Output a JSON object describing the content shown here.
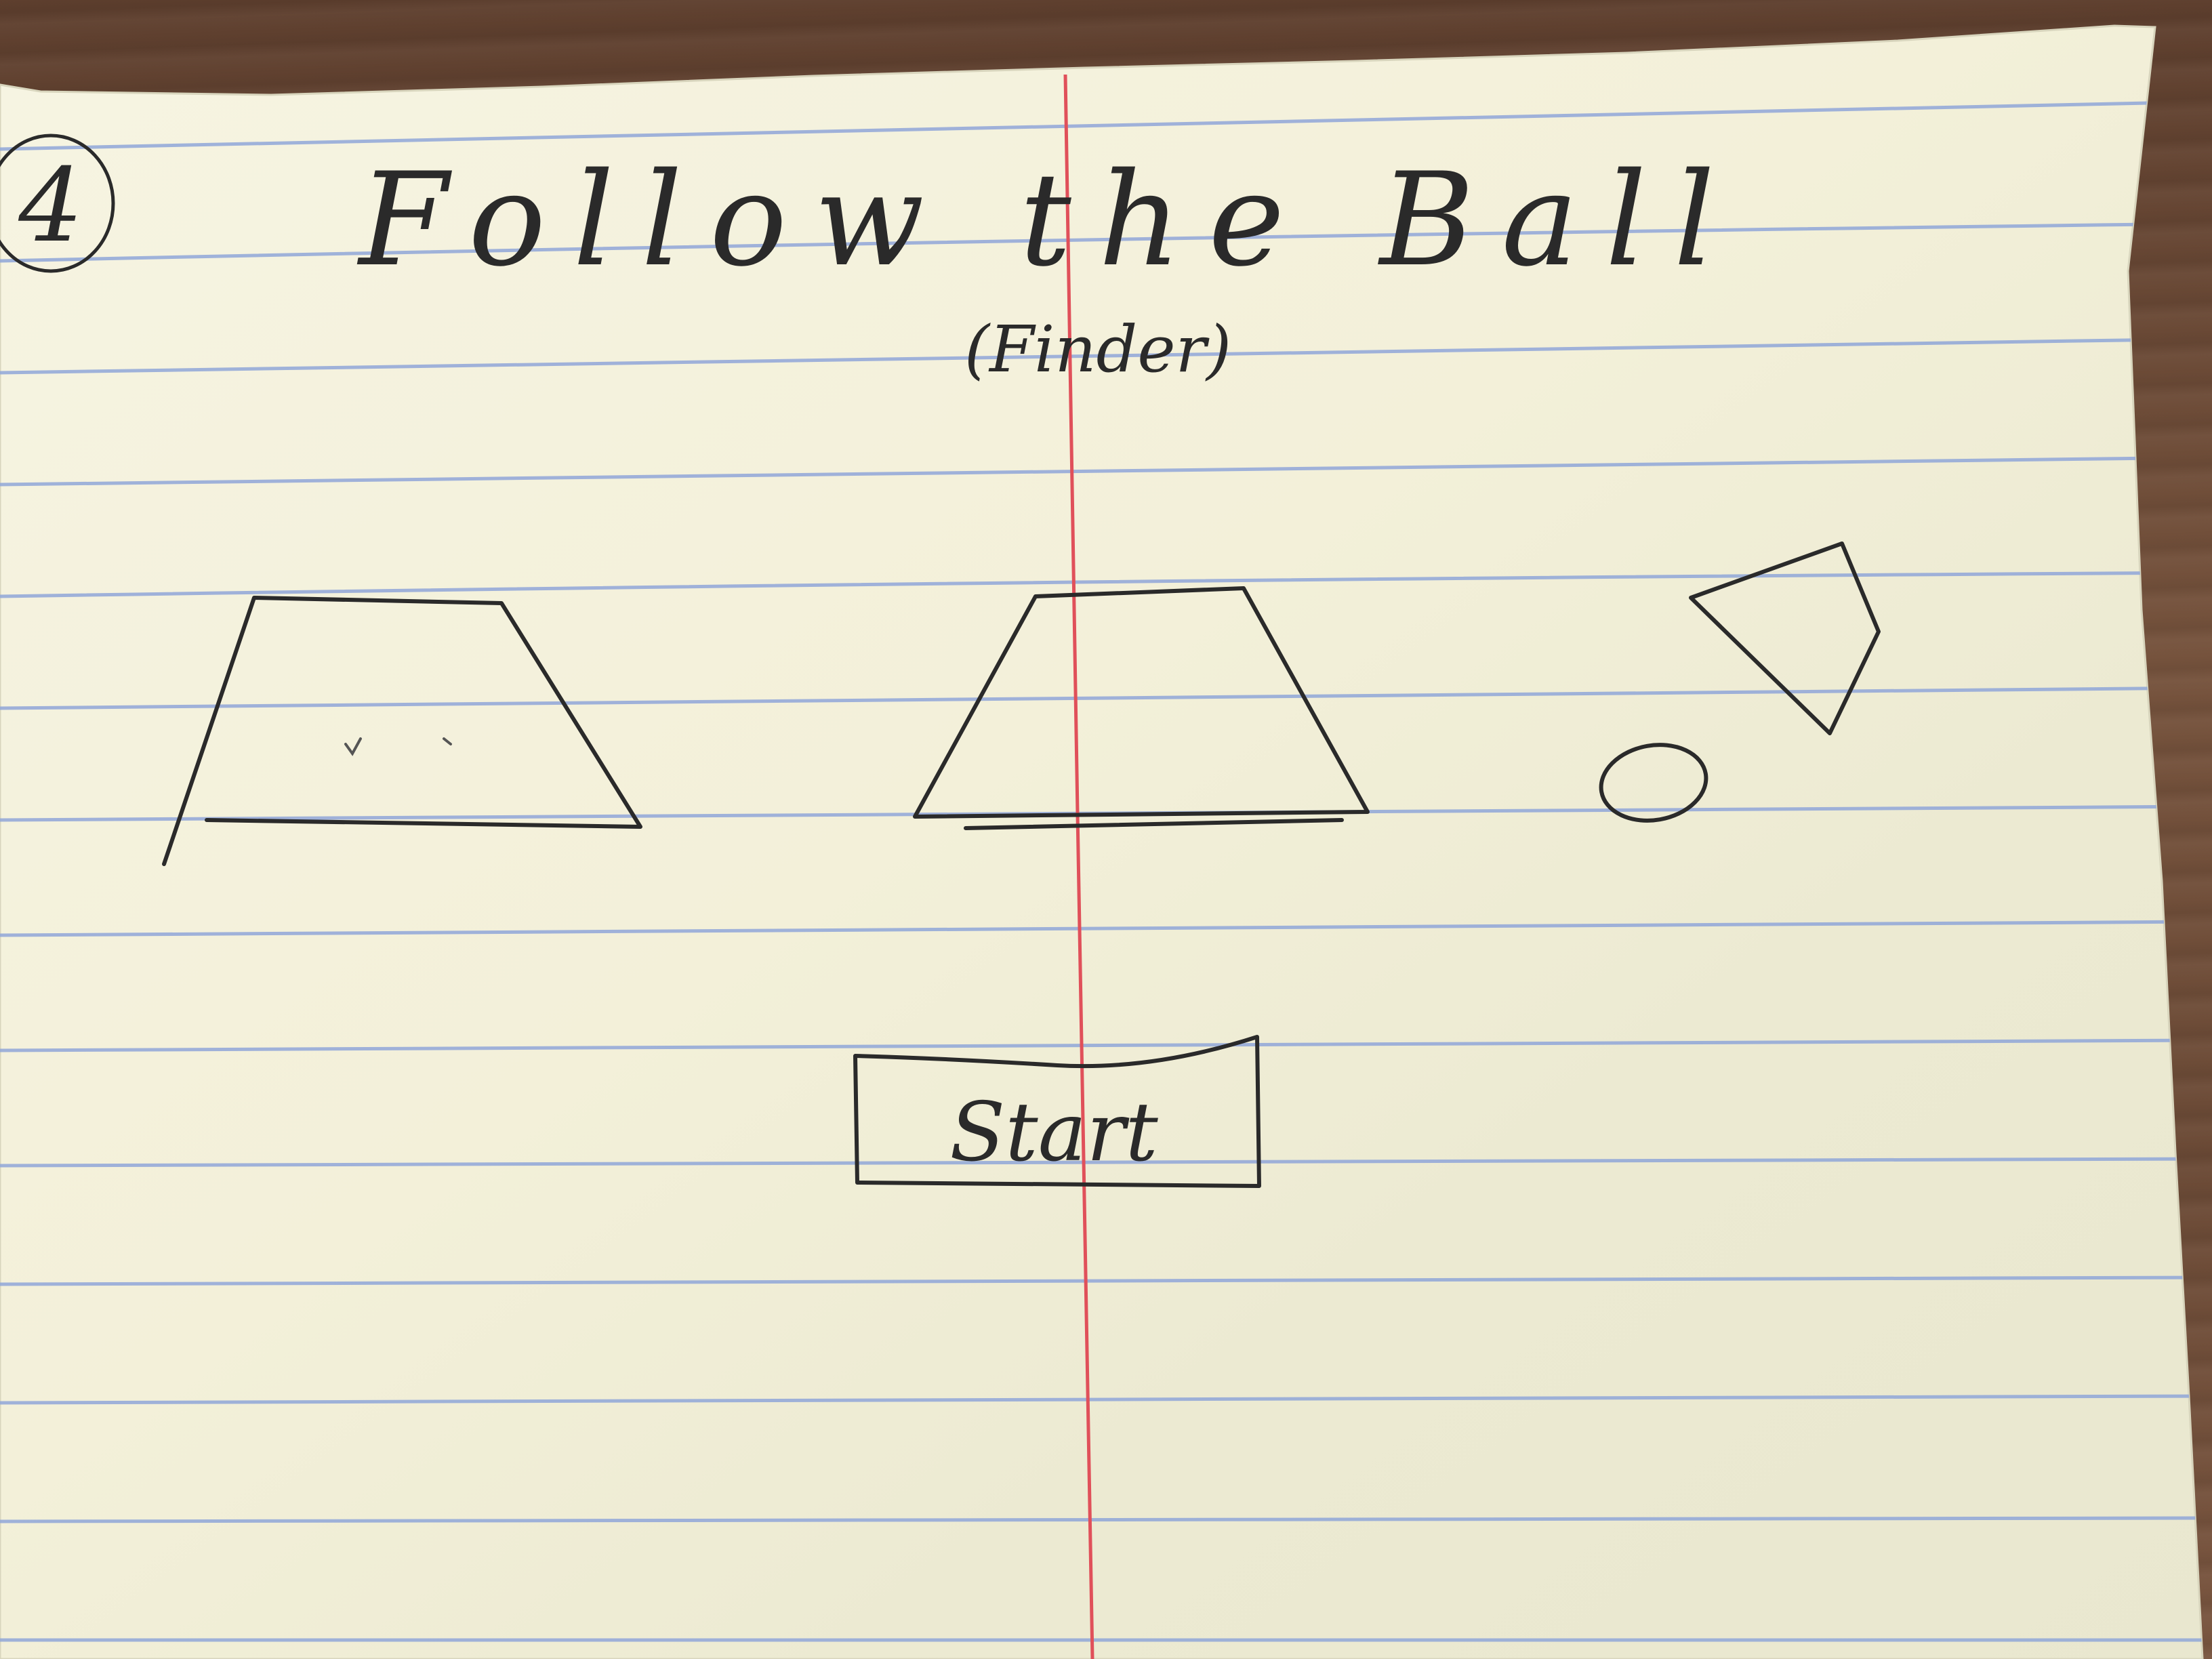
{
  "card": {
    "number": "4",
    "title": "Follow the Ball",
    "subtitle": "(Finder)"
  },
  "controls": {
    "start_label": "Start"
  },
  "colors": {
    "paper": "#f3f0d9",
    "rule_line": "#8fa6d8",
    "margin_line": "#e0505a",
    "ink": "#2a2a2a",
    "desk": "#6b4a36"
  },
  "icons": {
    "cup_left": "trapezoid-cup-icon",
    "cup_middle": "trapezoid-cup-icon",
    "cup_tilted": "tilted-cup-icon",
    "ball": "ball-icon"
  }
}
